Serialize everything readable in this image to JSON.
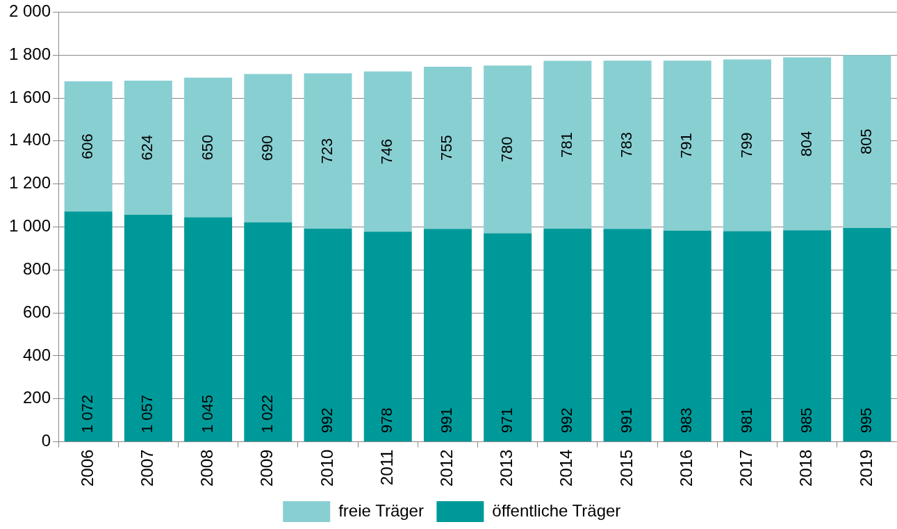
{
  "chart_data": {
    "type": "bar",
    "stacked": true,
    "categories": [
      "2006",
      "2007",
      "2008",
      "2009",
      "2010",
      "2011",
      "2012",
      "2013",
      "2014",
      "2015",
      "2016",
      "2017",
      "2018",
      "2019"
    ],
    "series": [
      {
        "name": "öffentliche Träger",
        "color": "#009999",
        "values": [
          1072,
          1057,
          1045,
          1022,
          992,
          978,
          991,
          971,
          992,
          991,
          983,
          981,
          985,
          995
        ],
        "value_labels": [
          "1 072",
          "1 057",
          "1 045",
          "1 022",
          "992",
          "978",
          "991",
          "971",
          "992",
          "991",
          "983",
          "981",
          "985",
          "995"
        ]
      },
      {
        "name": "freie Träger",
        "color": "#88cfd2",
        "values": [
          606,
          624,
          650,
          690,
          723,
          746,
          755,
          780,
          781,
          783,
          791,
          799,
          804,
          805
        ],
        "value_labels": [
          "606",
          "624",
          "650",
          "690",
          "723",
          "746",
          "755",
          "780",
          "781",
          "783",
          "791",
          "799",
          "804",
          "805"
        ]
      }
    ],
    "ylim": [
      0,
      2000
    ],
    "yticks": [
      0,
      {
        "value": 200,
        "label": "200"
      },
      {
        "value": 400,
        "label": "400"
      },
      {
        "value": 600,
        "label": "600"
      },
      {
        "value": 800,
        "label": "800"
      },
      {
        "value": 1000,
        "label": "1 000"
      },
      {
        "value": 1200,
        "label": "1 200"
      },
      {
        "value": 1400,
        "label": "1 400"
      },
      {
        "value": 1600,
        "label": "1 600"
      },
      {
        "value": 1800,
        "label": "1 800"
      },
      {
        "value": 2000,
        "label": "2 000"
      }
    ],
    "grid": "y",
    "legend": "bottom"
  }
}
